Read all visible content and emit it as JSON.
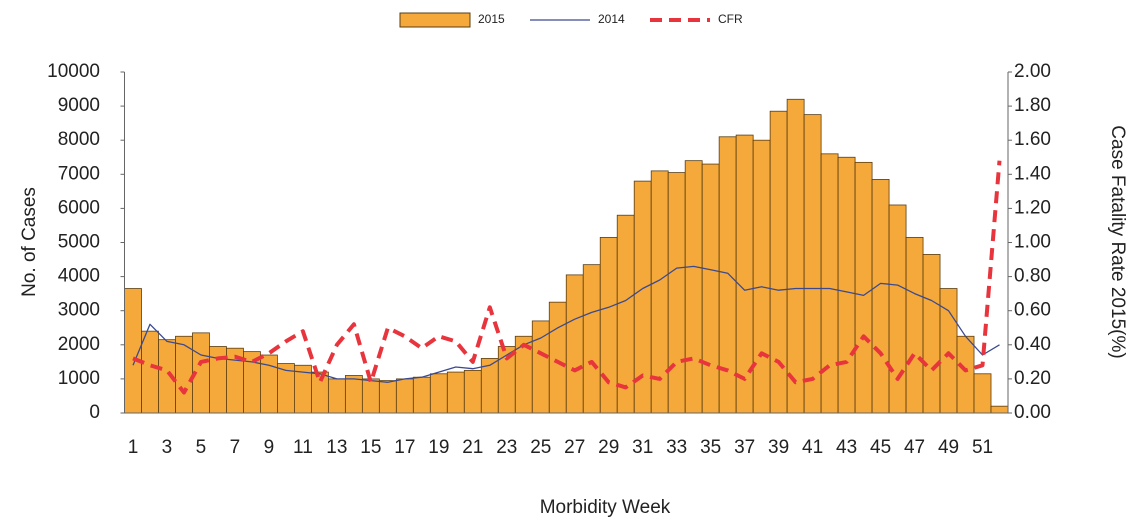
{
  "chart_data": {
    "type": "bar",
    "xlabel": "Morbidity Week",
    "ylabel": "No. of Cases",
    "y2label": "Case Fatality Rate 2015(%)",
    "categories": [
      "1",
      null,
      "3",
      null,
      "5",
      null,
      "7",
      null,
      "9",
      null,
      "11",
      null,
      "13",
      null,
      "15",
      null,
      "17",
      null,
      "19",
      null,
      "21",
      null,
      "23",
      null,
      "25",
      null,
      "27",
      null,
      "29",
      null,
      "31",
      null,
      "33",
      null,
      "35",
      null,
      "37",
      null,
      "39",
      null,
      "41",
      null,
      "43",
      null,
      "45",
      null,
      "47",
      null,
      "49",
      null,
      "51",
      null
    ],
    "series": [
      {
        "name": "2015",
        "type": "bar",
        "color": "#f5a93b",
        "axis": "y",
        "values": [
          3650,
          2400,
          2150,
          2250,
          2350,
          1950,
          1900,
          1800,
          1700,
          1450,
          1400,
          1200,
          1000,
          1100,
          1000,
          950,
          1000,
          1050,
          1150,
          1200,
          1250,
          1600,
          1950,
          2250,
          2700,
          3250,
          4050,
          4350,
          5150,
          5800,
          6800,
          7100,
          7050,
          7400,
          7300,
          8100,
          8150,
          8000,
          8850,
          9200,
          8750,
          7600,
          7500,
          7350,
          6850,
          6100,
          5150,
          4650,
          3650,
          2250,
          1150,
          200
        ]
      },
      {
        "name": "2014",
        "type": "line",
        "color": "#3b4a8f",
        "axis": "y",
        "values": [
          1400,
          2600,
          2100,
          2000,
          1700,
          1600,
          1550,
          1500,
          1400,
          1250,
          1200,
          1150,
          1000,
          1000,
          950,
          900,
          1000,
          1050,
          1200,
          1350,
          1300,
          1400,
          1700,
          2000,
          2200,
          2500,
          2750,
          2950,
          3100,
          3300,
          3650,
          3900,
          4250,
          4300,
          4200,
          4100,
          3600,
          3700,
          3600,
          3650,
          3650,
          3650,
          3550,
          3450,
          3800,
          3750,
          3500,
          3300,
          3000,
          2250,
          1700,
          2000
        ]
      },
      {
        "name": "CFR",
        "type": "line",
        "dashed": true,
        "color": "#e8343c",
        "axis": "y2",
        "values": [
          0.32,
          0.28,
          0.25,
          0.12,
          0.3,
          0.32,
          0.33,
          0.3,
          0.35,
          0.42,
          0.48,
          0.18,
          0.4,
          0.52,
          0.18,
          0.5,
          0.45,
          0.38,
          0.45,
          0.42,
          0.3,
          0.62,
          0.32,
          0.4,
          0.35,
          0.3,
          0.25,
          0.3,
          0.18,
          0.15,
          0.22,
          0.2,
          0.3,
          0.32,
          0.28,
          0.25,
          0.2,
          0.35,
          0.3,
          0.18,
          0.2,
          0.28,
          0.3,
          0.45,
          0.35,
          0.2,
          0.35,
          0.25,
          0.35,
          0.25,
          0.28,
          1.48
        ]
      }
    ],
    "ylim": [
      0,
      10000
    ],
    "yticks": [
      0,
      1000,
      2000,
      3000,
      4000,
      5000,
      6000,
      7000,
      8000,
      9000,
      10000
    ],
    "y2lim": [
      0,
      2
    ],
    "y2ticks": [
      {
        "value": 0,
        "label": "0.00"
      },
      {
        "value": 0.2,
        "label": "0.20"
      },
      {
        "value": 0.4,
        "label": "0.40"
      },
      {
        "value": 0.6,
        "label": "0.60"
      },
      {
        "value": 0.8,
        "label": "0.80"
      },
      {
        "value": 1,
        "label": "1.00"
      },
      {
        "value": 1.2,
        "label": "1.20"
      },
      {
        "value": 1.4,
        "label": "1.40"
      },
      {
        "value": 1.6,
        "label": "1.60"
      },
      {
        "value": 1.8,
        "label": "1.80"
      },
      {
        "value": 2,
        "label": "2.00"
      }
    ],
    "grid": false,
    "legend": "top"
  }
}
